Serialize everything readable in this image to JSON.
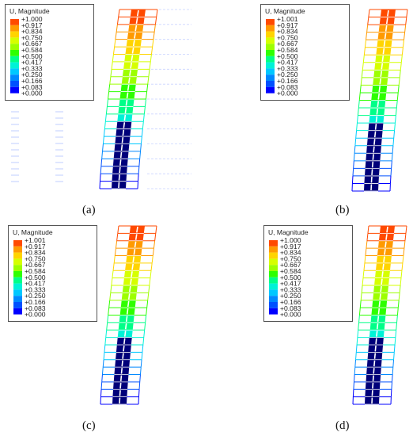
{
  "colors": [
    "#0000ff",
    "#0051ff",
    "#0089ff",
    "#00c8ff",
    "#00f2d7",
    "#00ff88",
    "#2eff00",
    "#9dff00",
    "#d6ff00",
    "#ffd400",
    "#ff9a00",
    "#ff4a00"
  ],
  "panels": [
    {
      "id": "a",
      "caption": "(a)",
      "legend": {
        "title": "U, Magnitude",
        "values": [
          "+1.000",
          "+0.917",
          "+0.834",
          "+0.750",
          "+0.667",
          "+0.584",
          "+0.500",
          "+0.417",
          "+0.333",
          "+0.250",
          "+0.166",
          "+0.083",
          "+0.000"
        ]
      },
      "ghost": true
    },
    {
      "id": "b",
      "caption": "(b)",
      "legend": {
        "title": "U, Magnitude",
        "values": [
          "+1.001",
          "+0.917",
          "+0.834",
          "+0.750",
          "+0.667",
          "+0.584",
          "+0.500",
          "+0.417",
          "+0.333",
          "+0.250",
          "+0.166",
          "+0.083",
          "+0.000"
        ]
      },
      "ghost": false
    },
    {
      "id": "c",
      "caption": "(c)",
      "legend": {
        "title": "U, Magnitude",
        "values": [
          "+1.001",
          "+0.917",
          "+0.834",
          "+0.750",
          "+0.667",
          "+0.584",
          "+0.500",
          "+0.417",
          "+0.333",
          "+0.250",
          "+0.166",
          "+0.083",
          "+0.000"
        ]
      },
      "ghost": false
    },
    {
      "id": "d",
      "caption": "(d)",
      "legend": {
        "title": "U, Magnitude",
        "values": [
          "+1.000",
          "+0.917",
          "+0.834",
          "+0.750",
          "+0.667",
          "+0.584",
          "+0.500",
          "+0.417",
          "+0.333",
          "+0.250",
          "+0.166",
          "+0.083",
          "+0.000"
        ]
      },
      "ghost": false
    }
  ]
}
